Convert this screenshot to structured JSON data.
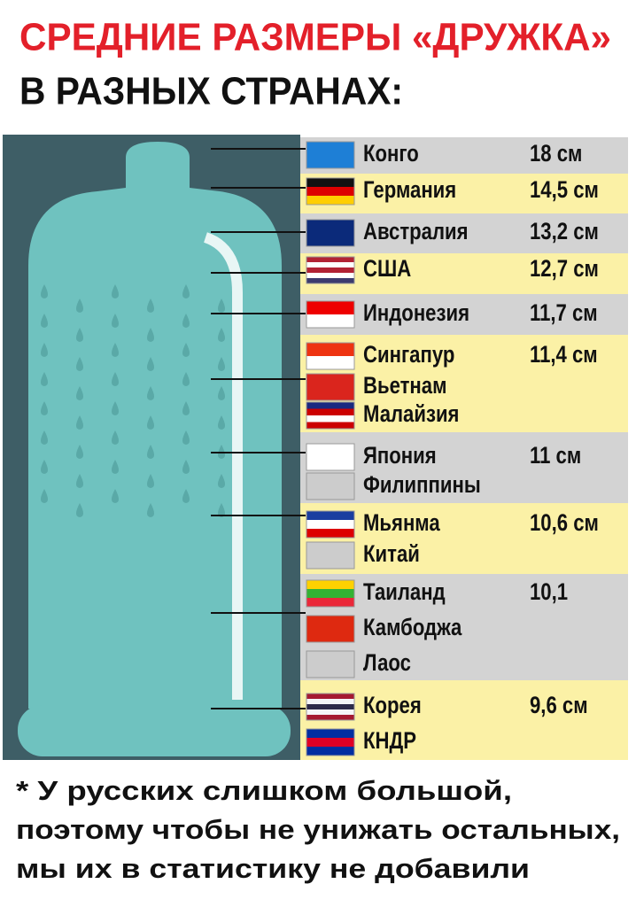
{
  "header": {
    "title": "СРЕДНИЕ РАЗМЕРЫ «ДРУЖКА»",
    "subtitle": "В РАЗНЫХ СТРАНАХ:"
  },
  "groups": [
    {
      "countries": [
        "Конго"
      ],
      "size": "18 см"
    },
    {
      "countries": [
        "Германия"
      ],
      "size": "14,5 см"
    },
    {
      "countries": [
        "Австралия"
      ],
      "size": "13,2 см"
    },
    {
      "countries": [
        "США"
      ],
      "size": "12,7 см"
    },
    {
      "countries": [
        "Индонезия"
      ],
      "size": "11,7 см"
    },
    {
      "countries": [
        "Сингапур",
        "Вьетнам",
        "Малайзия"
      ],
      "size": "11,4 см"
    },
    {
      "countries": [
        "Япония",
        "Филиппины"
      ],
      "size": "11 см"
    },
    {
      "countries": [
        "Мьянма",
        "Китай"
      ],
      "size": "10,6 см"
    },
    {
      "countries": [
        "Таиланд",
        "Камбоджа",
        "Лаос"
      ],
      "size": "10,1"
    },
    {
      "countries": [
        "Корея",
        "КНДР"
      ],
      "size": "9,6 см"
    }
  ],
  "footnote": [
    "* У русских слишком большой,",
    "поэтому чтобы не унижать остальных,",
    "мы их в статистику не добавили"
  ]
}
